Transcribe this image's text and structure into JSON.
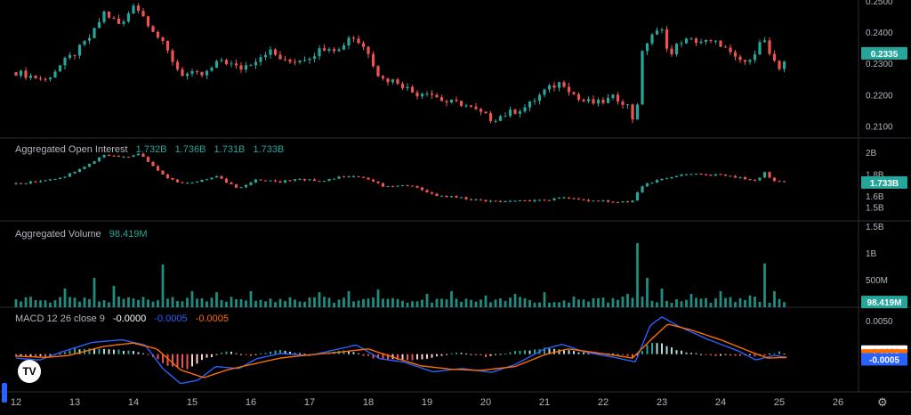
{
  "colors": {
    "up": "#26a69a",
    "down": "#ef5350",
    "macd": "#2962ff",
    "signal": "#ff6d00",
    "badge_teal": "#26a69a",
    "grid": "#1a1a1a",
    "separator": "#2a2e39"
  },
  "panes": {
    "oi": {
      "name": "Aggregated Open Interest",
      "values": [
        "1.732B",
        "1.736B",
        "1.731B",
        "1.733B"
      ]
    },
    "volume": {
      "name": "Aggregated Volume",
      "value": "98.419M"
    },
    "macd": {
      "name": "MACD 12 26 close 9",
      "values": [
        "-0.0000",
        "-0.0005",
        "-0.0005"
      ]
    }
  },
  "chart_data": [
    {
      "type": "candlestick",
      "title": "",
      "x_ticks": [
        "12",
        "13",
        "14",
        "15",
        "16",
        "17",
        "18",
        "19",
        "20",
        "21",
        "22",
        "23",
        "24",
        "25",
        "26"
      ],
      "y_ticks": [
        "0.2500",
        "0.2400",
        "0.2300",
        "0.2200",
        "0.2100"
      ],
      "ylim": [
        0.2065,
        0.2505
      ],
      "last_value": "0.2335",
      "series": [
        {
          "values": [
            [
              12.0,
              0.2275
            ],
            [
              12.5,
              0.225
            ],
            [
              12.8,
              0.2305
            ],
            [
              13.0,
              0.2335
            ],
            [
              13.3,
              0.2395
            ],
            [
              13.5,
              0.2465
            ],
            [
              13.8,
              0.242
            ],
            [
              14.0,
              0.2495
            ],
            [
              14.3,
              0.242
            ],
            [
              14.55,
              0.235
            ],
            [
              14.8,
              0.227
            ],
            [
              15.2,
              0.2265
            ],
            [
              15.5,
              0.2315
            ],
            [
              15.8,
              0.2285
            ],
            [
              16.0,
              0.2305
            ],
            [
              16.3,
              0.2345
            ],
            [
              16.6,
              0.2305
            ],
            [
              17.0,
              0.2325
            ],
            [
              17.3,
              0.236
            ],
            [
              17.5,
              0.2345
            ],
            [
              17.7,
              0.2395
            ],
            [
              18.0,
              0.234
            ],
            [
              18.2,
              0.2255
            ],
            [
              18.5,
              0.2245
            ],
            [
              18.8,
              0.2205
            ],
            [
              19.0,
              0.2215
            ],
            [
              19.3,
              0.218
            ],
            [
              19.6,
              0.2175
            ],
            [
              19.9,
              0.2145
            ],
            [
              20.1,
              0.2125
            ],
            [
              20.4,
              0.2145
            ],
            [
              20.7,
              0.2165
            ],
            [
              21.0,
              0.2215
            ],
            [
              21.3,
              0.2245
            ],
            [
              21.6,
              0.2185
            ],
            [
              21.9,
              0.2175
            ],
            [
              22.2,
              0.2195
            ],
            [
              22.4,
              0.2175
            ],
            [
              22.55,
              0.2105
            ],
            [
              22.65,
              0.2325
            ],
            [
              22.8,
              0.2395
            ],
            [
              23.0,
              0.2405
            ],
            [
              23.15,
              0.2325
            ],
            [
              23.3,
              0.2375
            ],
            [
              23.6,
              0.2375
            ],
            [
              24.0,
              0.2365
            ],
            [
              24.25,
              0.2315
            ],
            [
              24.5,
              0.2305
            ],
            [
              24.7,
              0.2395
            ],
            [
              24.85,
              0.2325
            ],
            [
              25.0,
              0.2275
            ],
            [
              25.15,
              0.2335
            ]
          ]
        }
      ]
    },
    {
      "type": "candlestick",
      "title": "Aggregated Open Interest",
      "y_ticks": [
        "2B",
        "1.8B",
        "1.6B",
        "1.5B"
      ],
      "ylim": [
        1.43,
        2.1
      ],
      "last_value": "1.733B",
      "series": [
        {
          "values": [
            [
              12.0,
              1.72
            ],
            [
              12.8,
              1.78
            ],
            [
              13.3,
              1.92
            ],
            [
              13.5,
              1.99
            ],
            [
              13.8,
              1.96
            ],
            [
              14.1,
              2.0
            ],
            [
              14.5,
              1.8
            ],
            [
              14.8,
              1.72
            ],
            [
              15.1,
              1.74
            ],
            [
              15.4,
              1.79
            ],
            [
              15.8,
              1.68
            ],
            [
              16.1,
              1.76
            ],
            [
              16.5,
              1.74
            ],
            [
              16.8,
              1.76
            ],
            [
              17.2,
              1.75
            ],
            [
              17.5,
              1.78
            ],
            [
              17.8,
              1.79
            ],
            [
              18.0,
              1.76
            ],
            [
              18.3,
              1.69
            ],
            [
              18.7,
              1.71
            ],
            [
              19.1,
              1.62
            ],
            [
              19.6,
              1.59
            ],
            [
              20.0,
              1.56
            ],
            [
              20.5,
              1.56
            ],
            [
              21.0,
              1.57
            ],
            [
              21.3,
              1.59
            ],
            [
              21.7,
              1.57
            ],
            [
              22.1,
              1.56
            ],
            [
              22.5,
              1.56
            ],
            [
              22.65,
              1.7
            ],
            [
              23.0,
              1.77
            ],
            [
              23.3,
              1.8
            ],
            [
              23.6,
              1.81
            ],
            [
              24.0,
              1.8
            ],
            [
              24.3,
              1.78
            ],
            [
              24.6,
              1.75
            ],
            [
              24.75,
              1.83
            ],
            [
              24.9,
              1.74
            ],
            [
              25.15,
              1.74
            ]
          ]
        }
      ]
    },
    {
      "type": "bar",
      "title": "Aggregated Volume",
      "y_ticks": [
        "1.5B",
        "1B",
        "500M"
      ],
      "ylim": [
        0,
        1.55
      ],
      "last_value": "98.419M",
      "peaks": [
        [
          12.0,
          0.15
        ],
        [
          12.85,
          0.35
        ],
        [
          13.3,
          0.55
        ],
        [
          13.65,
          0.4
        ],
        [
          14.5,
          0.8
        ],
        [
          15.0,
          0.3
        ],
        [
          15.4,
          0.28
        ],
        [
          16.0,
          0.3
        ],
        [
          17.2,
          0.28
        ],
        [
          17.7,
          0.3
        ],
        [
          18.2,
          0.33
        ],
        [
          19.0,
          0.25
        ],
        [
          19.4,
          0.3
        ],
        [
          20.0,
          0.22
        ],
        [
          20.5,
          0.25
        ],
        [
          21.0,
          0.28
        ],
        [
          21.5,
          0.2
        ],
        [
          22.0,
          0.18
        ],
        [
          22.4,
          0.25
        ],
        [
          22.6,
          1.2
        ],
        [
          22.75,
          0.55
        ],
        [
          23.0,
          0.35
        ],
        [
          23.5,
          0.25
        ],
        [
          24.0,
          0.3
        ],
        [
          24.5,
          0.22
        ],
        [
          24.75,
          0.82
        ],
        [
          24.9,
          0.3
        ],
        [
          25.15,
          0.15
        ]
      ]
    },
    {
      "type": "line",
      "title": "MACD 12 26 close 9",
      "y_ticks": [
        "0.0050"
      ],
      "ylim": [
        -0.0055,
        0.0065
      ],
      "last_values": [
        "-0.0000",
        "-0.0005",
        "-0.0005"
      ],
      "series": [
        {
          "values": [
            [
              12.0,
              -0.0006
            ],
            [
              12.4,
              -0.0009
            ],
            [
              12.8,
              0.0004
            ],
            [
              13.3,
              0.0018
            ],
            [
              13.8,
              0.0022
            ],
            [
              14.2,
              0.0014
            ],
            [
              14.5,
              -0.0022
            ],
            [
              14.8,
              -0.0045
            ],
            [
              15.1,
              -0.004
            ],
            [
              15.4,
              -0.0019
            ],
            [
              15.8,
              -0.0022
            ],
            [
              16.1,
              -0.0007
            ],
            [
              16.5,
              0.0001
            ],
            [
              17.0,
              -0.0002
            ],
            [
              17.5,
              0.0008
            ],
            [
              17.8,
              0.0014
            ],
            [
              18.2,
              -0.0007
            ],
            [
              18.6,
              -0.0012
            ],
            [
              19.1,
              -0.0027
            ],
            [
              19.6,
              -0.0022
            ],
            [
              20.1,
              -0.0028
            ],
            [
              20.5,
              -0.0016
            ],
            [
              21.0,
              0.0008
            ],
            [
              21.3,
              0.0015
            ],
            [
              21.7,
              0.0003
            ],
            [
              22.2,
              -0.0005
            ],
            [
              22.55,
              -0.0012
            ],
            [
              22.8,
              0.0044
            ],
            [
              23.0,
              0.0057
            ],
            [
              23.3,
              0.0042
            ],
            [
              23.8,
              0.0022
            ],
            [
              24.3,
              0.0005
            ],
            [
              24.6,
              -0.0009
            ],
            [
              24.9,
              -0.0002
            ],
            [
              25.15,
              -0.0005
            ]
          ]
        },
        {
          "values": [
            [
              12.0,
              -0.0003
            ],
            [
              12.5,
              -0.0005
            ],
            [
              12.9,
              -0.0002
            ],
            [
              13.5,
              0.0012
            ],
            [
              14.0,
              0.0017
            ],
            [
              14.4,
              0.0008
            ],
            [
              14.8,
              -0.0024
            ],
            [
              15.2,
              -0.0036
            ],
            [
              15.6,
              -0.0024
            ],
            [
              16.0,
              -0.0016
            ],
            [
              16.5,
              -0.0006
            ],
            [
              17.0,
              -0.0001
            ],
            [
              17.5,
              0.0003
            ],
            [
              18.0,
              0.0008
            ],
            [
              18.4,
              -0.0004
            ],
            [
              18.9,
              -0.0018
            ],
            [
              19.4,
              -0.0023
            ],
            [
              19.9,
              -0.0025
            ],
            [
              20.5,
              -0.0019
            ],
            [
              21.0,
              -0.0001
            ],
            [
              21.4,
              0.0008
            ],
            [
              21.9,
              0.0002
            ],
            [
              22.5,
              -0.0006
            ],
            [
              22.8,
              0.0021
            ],
            [
              23.1,
              0.0046
            ],
            [
              23.5,
              0.0037
            ],
            [
              24.0,
              0.0022
            ],
            [
              24.5,
              0.0004
            ],
            [
              24.8,
              -0.0006
            ],
            [
              25.15,
              -0.0005
            ]
          ]
        }
      ],
      "histogram": [
        [
          12.0,
          -0.0003
        ],
        [
          12.6,
          -0.0004
        ],
        [
          13.0,
          0.0008
        ],
        [
          13.5,
          0.0008
        ],
        [
          14.0,
          0.0005
        ],
        [
          14.3,
          -0.0002
        ],
        [
          14.6,
          -0.0018
        ],
        [
          14.9,
          -0.0023
        ],
        [
          15.2,
          -0.0008
        ],
        [
          15.6,
          0.0005
        ],
        [
          16.0,
          -0.0002
        ],
        [
          16.5,
          0.0006
        ],
        [
          17.0,
          -0.0001
        ],
        [
          17.6,
          0.0006
        ],
        [
          18.1,
          -0.0006
        ],
        [
          18.5,
          -0.0009
        ],
        [
          19.0,
          -0.0008
        ],
        [
          19.5,
          0.0003
        ],
        [
          20.0,
          -0.0004
        ],
        [
          20.5,
          0.0004
        ],
        [
          21.0,
          0.0009
        ],
        [
          21.3,
          0.0007
        ],
        [
          21.7,
          0.0002
        ],
        [
          22.2,
          0.0001
        ],
        [
          22.55,
          -0.0006
        ],
        [
          22.8,
          0.0018
        ],
        [
          23.0,
          0.0016
        ],
        [
          23.3,
          0.0005
        ],
        [
          23.8,
          -0.0002
        ],
        [
          24.3,
          -0.0002
        ],
        [
          24.7,
          -0.0003
        ],
        [
          25.0,
          0.0004
        ],
        [
          25.15,
          0.0
        ]
      ]
    }
  ]
}
